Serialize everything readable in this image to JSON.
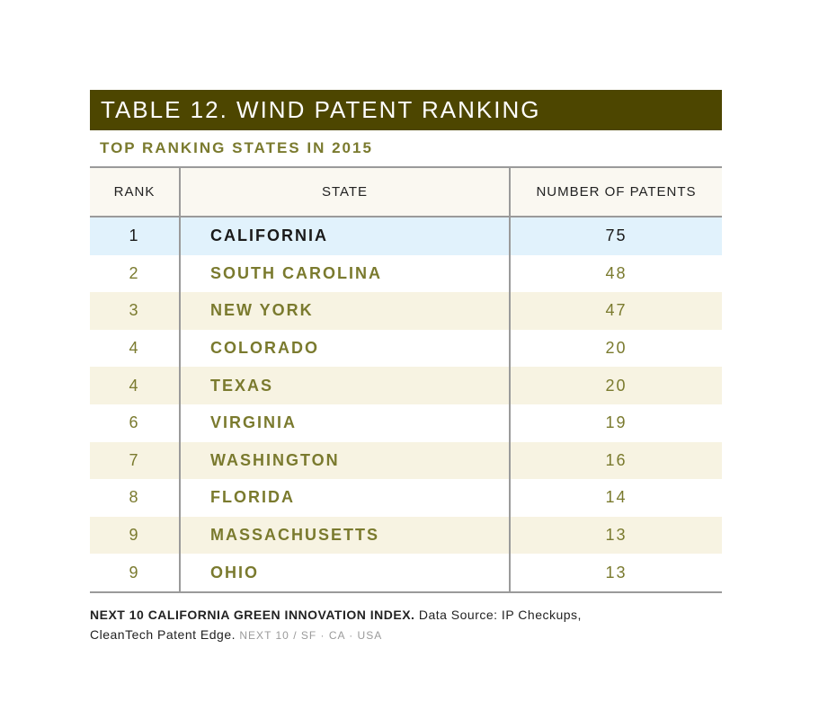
{
  "table": {
    "title": "TABLE 12. WIND PATENT RANKING",
    "subtitle": "TOP RANKING STATES IN 2015",
    "headers": {
      "rank": "RANK",
      "state": "STATE",
      "patents": "NUMBER OF PATENTS"
    },
    "rows": [
      {
        "rank": "1",
        "state": "CALIFORNIA",
        "patents": "75"
      },
      {
        "rank": "2",
        "state": "SOUTH CAROLINA",
        "patents": "48"
      },
      {
        "rank": "3",
        "state": "NEW YORK",
        "patents": "47"
      },
      {
        "rank": "4",
        "state": "COLORADO",
        "patents": "20"
      },
      {
        "rank": "4",
        "state": "TEXAS",
        "patents": "20"
      },
      {
        "rank": "6",
        "state": "VIRGINIA",
        "patents": "19"
      },
      {
        "rank": "7",
        "state": "WASHINGTON",
        "patents": "16"
      },
      {
        "rank": "8",
        "state": "FLORIDA",
        "patents": "14"
      },
      {
        "rank": "9",
        "state": "MASSACHUSETTS",
        "patents": "13"
      },
      {
        "rank": "9",
        "state": "OHIO",
        "patents": "13"
      }
    ]
  },
  "footer": {
    "index_name": "NEXT 10 CALIFORNIA GREEN INNOVATION INDEX.",
    "source": "Data Source: IP Checkups, CleanTech Patent Edge.",
    "org": "NEXT 10 / SF · CA · USA"
  },
  "colors": {
    "title_bar": "#4d4600",
    "accent_text": "#7a7a2e",
    "highlight_row": "#e1f2fc",
    "alt_row": "#f7f3e2"
  }
}
